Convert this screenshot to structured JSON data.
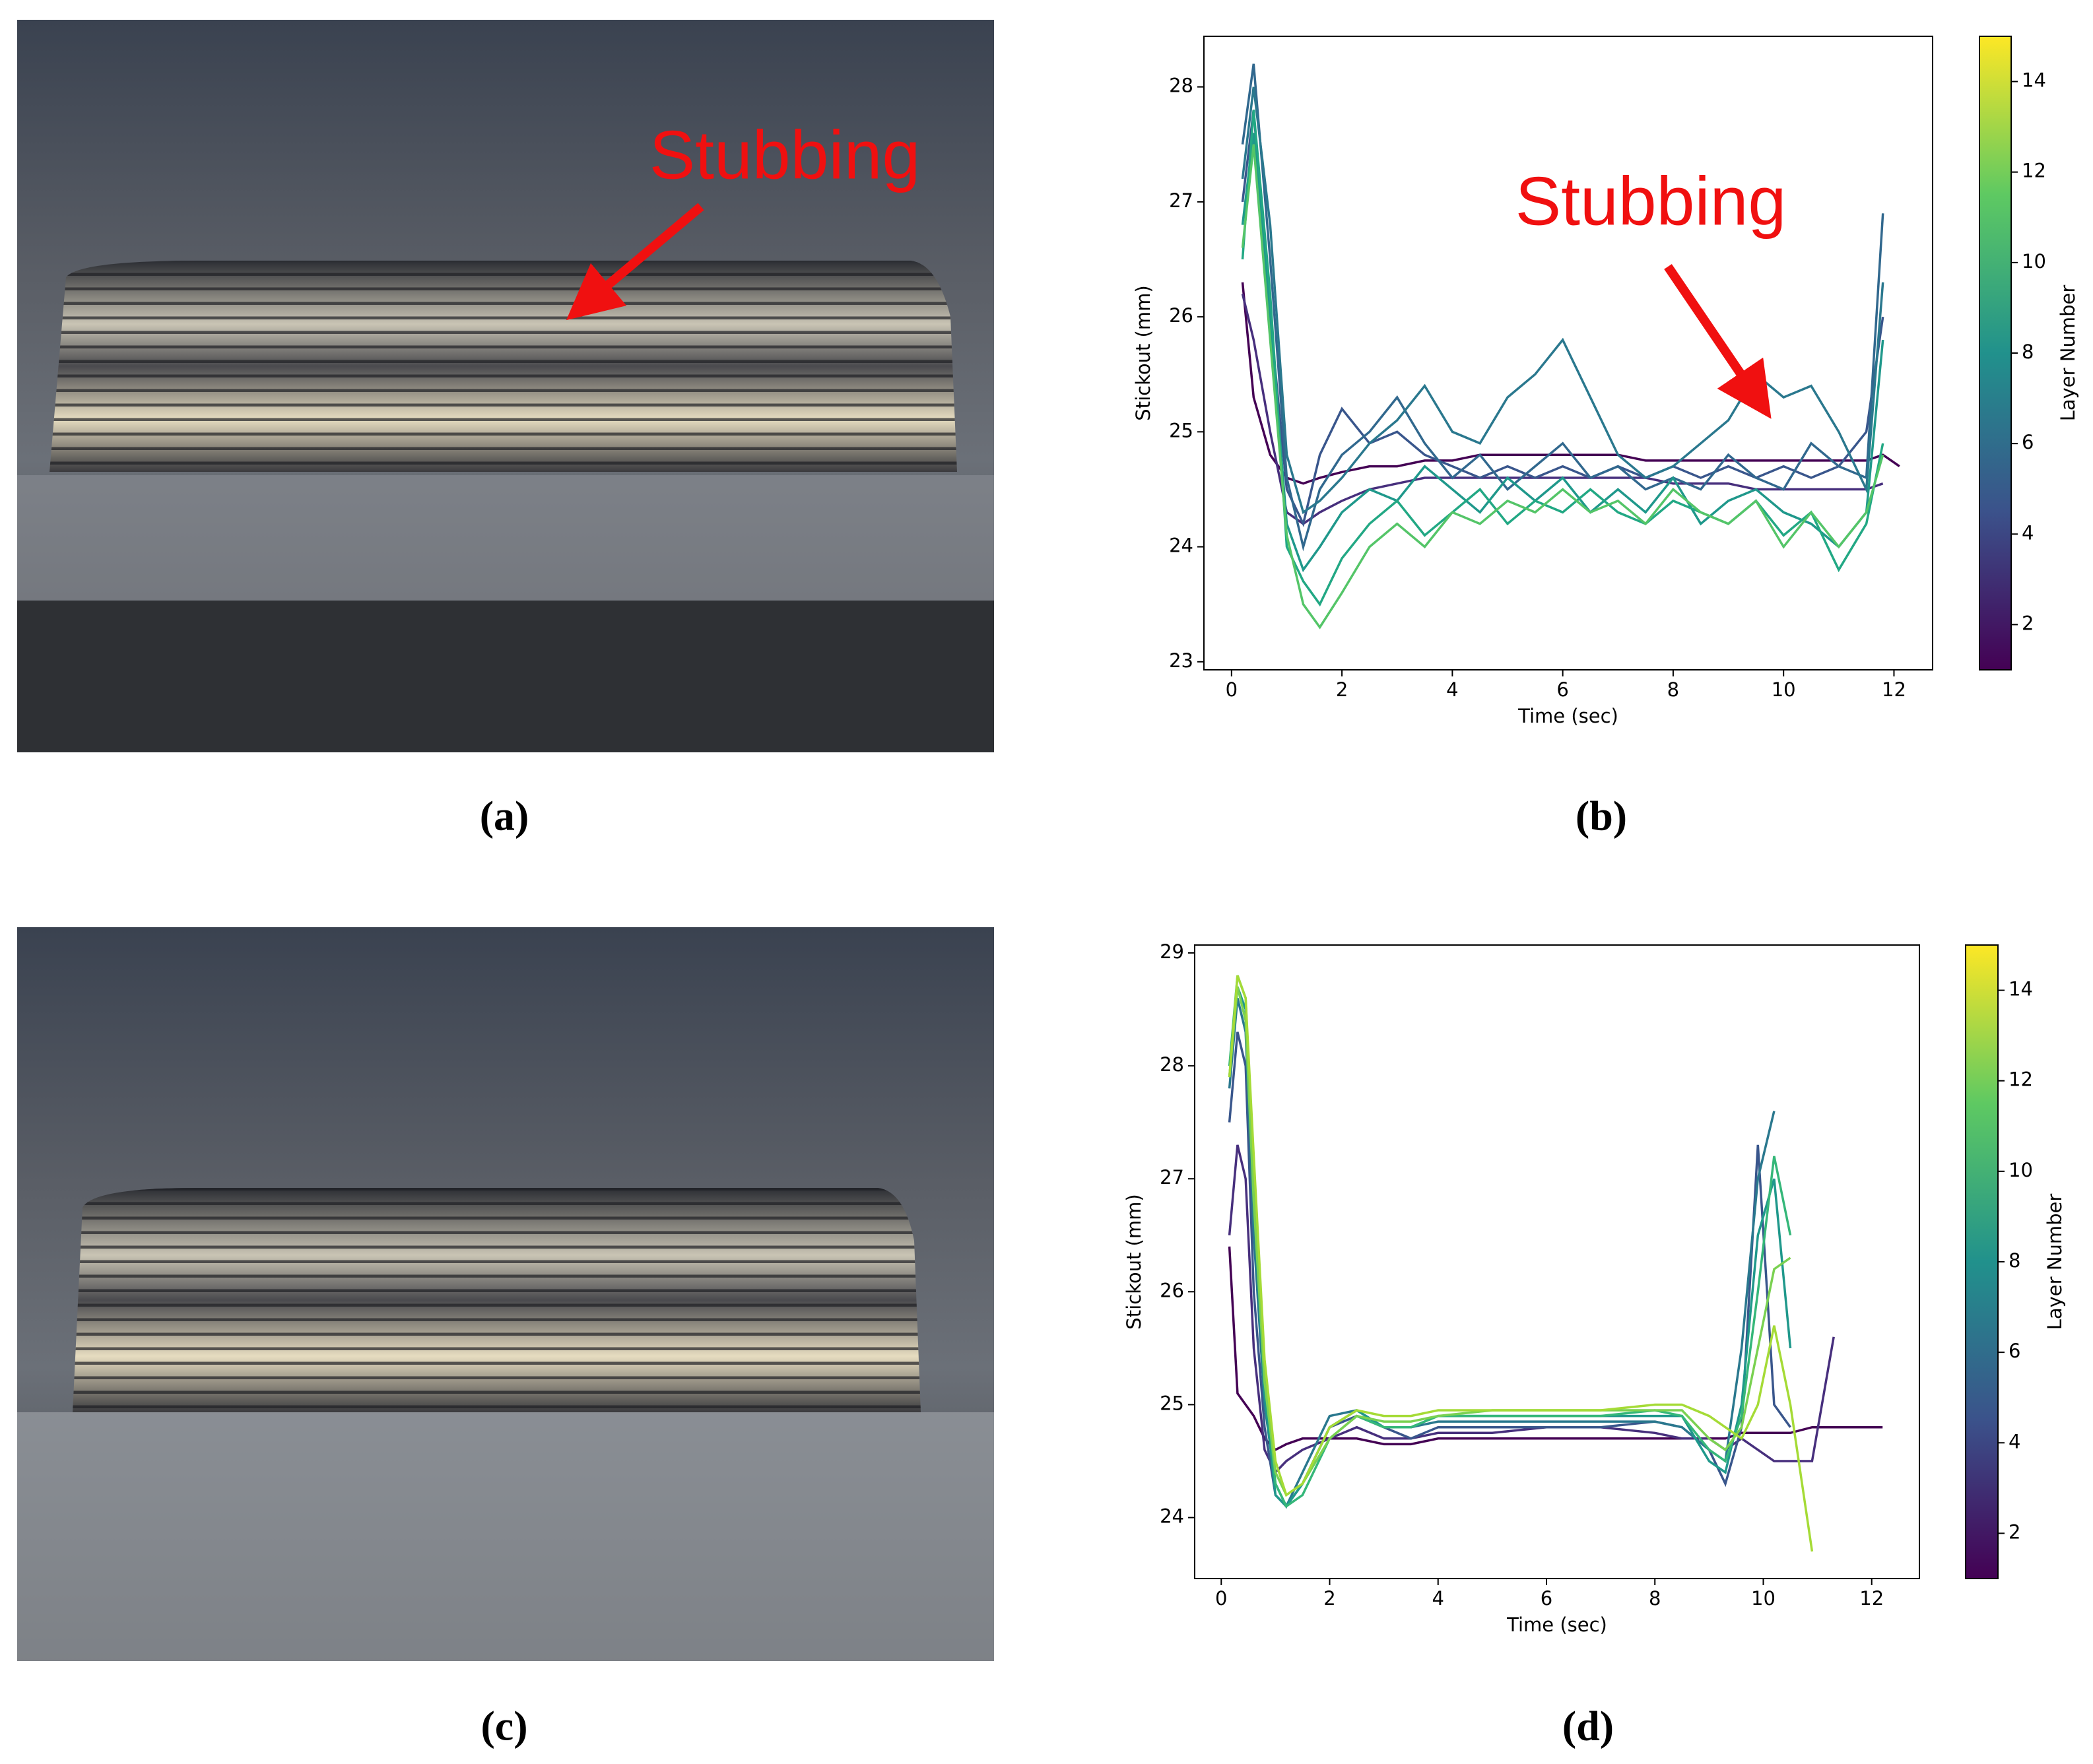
{
  "photos": [
    {
      "label": "(a)",
      "annotation": "Stubbing"
    },
    {
      "label": "(c)"
    }
  ],
  "chart_data": [
    {
      "type": "line",
      "panel_label": "(b)",
      "annotation": "Stubbing",
      "xlabel": "Time (sec)",
      "ylabel": "Stickout (mm)",
      "xlim": [
        -0.5,
        12.7
      ],
      "ylim": [
        22.93,
        28.44
      ],
      "xticks": [
        0,
        2,
        4,
        6,
        8,
        10,
        12
      ],
      "yticks": [
        23,
        24,
        25,
        26,
        27,
        28
      ],
      "colorbar": {
        "label": "Layer Number",
        "lim": [
          1,
          15
        ],
        "ticks": [
          2,
          4,
          6,
          8,
          10,
          12,
          14
        ]
      },
      "x": [
        0.2,
        0.4,
        0.7,
        1.0,
        1.3,
        1.6,
        2,
        2.5,
        3,
        3.5,
        4,
        4.5,
        5,
        5.5,
        6,
        6.5,
        7,
        7.5,
        8,
        8.5,
        9,
        9.5,
        10,
        10.5,
        11,
        11.5,
        11.8,
        12.1
      ],
      "series": [
        {
          "color": "#440154",
          "values": [
            26.3,
            25.3,
            24.8,
            24.6,
            24.55,
            24.6,
            24.65,
            24.7,
            24.7,
            24.75,
            24.75,
            24.8,
            24.8,
            24.8,
            24.8,
            24.8,
            24.8,
            24.75,
            24.75,
            24.75,
            24.75,
            24.75,
            24.75,
            24.75,
            24.75,
            24.75,
            24.8,
            24.7
          ]
        },
        {
          "color": "#472f7d",
          "values": [
            26.2,
            25.8,
            25.0,
            24.3,
            24.2,
            24.3,
            24.4,
            24.5,
            24.55,
            24.6,
            24.6,
            24.6,
            24.6,
            24.6,
            24.6,
            24.6,
            24.6,
            24.6,
            24.55,
            24.55,
            24.55,
            24.5,
            24.5,
            24.5,
            24.5,
            24.5,
            24.55,
            null
          ]
        },
        {
          "color": "#39568c",
          "values": [
            27.0,
            27.8,
            26.0,
            24.5,
            24.2,
            24.8,
            25.2,
            24.9,
            25.0,
            24.8,
            24.7,
            24.6,
            24.7,
            24.6,
            24.7,
            24.6,
            24.7,
            24.6,
            24.7,
            24.6,
            24.7,
            24.6,
            24.7,
            24.6,
            24.7,
            25.0,
            26.0,
            null
          ]
        },
        {
          "color": "#31688e",
          "values": [
            27.5,
            28.2,
            26.5,
            24.6,
            24.0,
            24.5,
            24.8,
            25.0,
            25.3,
            24.9,
            24.6,
            24.8,
            24.5,
            24.7,
            24.9,
            24.6,
            24.7,
            24.5,
            24.6,
            24.5,
            24.8,
            24.6,
            24.5,
            24.9,
            24.7,
            24.6,
            26.9,
            null
          ]
        },
        {
          "color": "#2a788e",
          "values": [
            27.2,
            28.0,
            26.8,
            24.8,
            24.3,
            24.4,
            24.6,
            24.9,
            25.1,
            25.4,
            25.0,
            24.9,
            25.3,
            25.5,
            25.8,
            25.3,
            24.8,
            24.6,
            24.7,
            24.9,
            25.1,
            25.5,
            25.3,
            25.4,
            25.0,
            24.5,
            26.3,
            null
          ]
        },
        {
          "color": "#1f988b",
          "values": [
            26.8,
            27.6,
            26.0,
            24.2,
            23.8,
            24.0,
            24.3,
            24.5,
            24.4,
            24.7,
            24.5,
            24.3,
            24.6,
            24.4,
            24.6,
            24.3,
            24.5,
            24.3,
            24.6,
            24.2,
            24.4,
            24.5,
            24.3,
            24.2,
            24.0,
            24.3,
            25.8,
            null
          ]
        },
        {
          "color": "#22a884",
          "values": [
            26.5,
            27.8,
            26.2,
            24.0,
            23.7,
            23.5,
            23.9,
            24.2,
            24.4,
            24.1,
            24.3,
            24.5,
            24.2,
            24.4,
            24.3,
            24.5,
            24.3,
            24.2,
            24.4,
            24.3,
            24.2,
            24.4,
            24.1,
            24.3,
            23.8,
            24.2,
            24.9,
            null
          ]
        },
        {
          "color": "#54c568",
          "values": [
            26.6,
            27.5,
            25.8,
            24.1,
            23.5,
            23.3,
            23.6,
            24.0,
            24.2,
            24.0,
            24.3,
            24.2,
            24.4,
            24.3,
            24.5,
            24.3,
            24.4,
            24.2,
            24.5,
            24.3,
            24.2,
            24.4,
            24.0,
            24.3,
            24.0,
            24.3,
            24.8,
            null
          ]
        }
      ]
    },
    {
      "type": "line",
      "panel_label": "(d)",
      "xlabel": "Time (sec)",
      "ylabel": "Stickout (mm)",
      "xlim": [
        -0.49,
        12.88
      ],
      "ylim": [
        23.46,
        29.07
      ],
      "xticks": [
        0,
        2,
        4,
        6,
        8,
        10,
        12
      ],
      "yticks": [
        24,
        25,
        26,
        27,
        28,
        29
      ],
      "colorbar": {
        "label": "Layer Number",
        "lim": [
          1,
          15
        ],
        "ticks": [
          2,
          4,
          6,
          8,
          10,
          12,
          14
        ]
      },
      "x": [
        0.15,
        0.3,
        0.45,
        0.6,
        0.8,
        1.0,
        1.2,
        1.5,
        2,
        2.5,
        3,
        3.5,
        4,
        5,
        6,
        7,
        8,
        8.5,
        9,
        9.3,
        9.6,
        9.9,
        10.2,
        10.5,
        10.9,
        11.3,
        11.8,
        12.2
      ],
      "series": [
        {
          "color": "#440154",
          "values": [
            26.4,
            25.1,
            25.0,
            24.9,
            24.7,
            24.6,
            24.65,
            24.7,
            24.7,
            24.7,
            24.65,
            24.65,
            24.7,
            24.7,
            24.7,
            24.7,
            24.7,
            24.7,
            24.7,
            24.7,
            24.75,
            24.75,
            24.75,
            24.75,
            24.8,
            24.8,
            24.8,
            24.8
          ]
        },
        {
          "color": "#472f7d",
          "values": [
            26.5,
            27.3,
            27.0,
            25.5,
            24.6,
            24.4,
            24.5,
            24.6,
            24.7,
            24.8,
            24.7,
            24.7,
            24.75,
            24.75,
            24.8,
            24.8,
            24.75,
            24.7,
            24.7,
            24.6,
            24.7,
            24.6,
            24.5,
            24.5,
            24.5,
            25.6,
            null,
            null
          ]
        },
        {
          "color": "#39568c",
          "values": [
            27.5,
            28.3,
            28.0,
            26.0,
            24.8,
            24.2,
            24.1,
            24.3,
            24.8,
            24.9,
            24.8,
            24.7,
            24.8,
            24.8,
            24.8,
            24.8,
            24.85,
            24.8,
            24.6,
            24.3,
            24.8,
            27.3,
            25.0,
            24.8,
            null,
            null,
            null,
            null
          ]
        },
        {
          "color": "#2a788e",
          "values": [
            27.8,
            28.6,
            28.3,
            26.5,
            25.0,
            24.3,
            24.1,
            24.4,
            24.9,
            24.95,
            24.8,
            24.8,
            24.85,
            24.85,
            24.85,
            24.85,
            24.85,
            24.8,
            24.6,
            24.5,
            25.5,
            27.0,
            27.6,
            null,
            null,
            null,
            null,
            null
          ]
        },
        {
          "color": "#1f988b",
          "values": [
            27.9,
            28.7,
            28.5,
            26.8,
            25.1,
            24.2,
            24.1,
            24.3,
            24.8,
            24.95,
            24.8,
            24.8,
            24.9,
            24.9,
            24.9,
            24.9,
            24.9,
            24.9,
            24.5,
            24.4,
            25.0,
            26.5,
            27.0,
            25.5,
            null,
            null,
            null,
            null
          ]
        },
        {
          "color": "#35b779",
          "values": [
            28.0,
            28.8,
            28.6,
            27.0,
            25.3,
            24.3,
            24.1,
            24.2,
            24.7,
            24.9,
            24.8,
            24.8,
            24.9,
            24.9,
            24.9,
            24.9,
            24.95,
            24.9,
            24.6,
            24.5,
            24.9,
            26.0,
            27.2,
            26.5,
            null,
            null,
            null,
            null
          ]
        },
        {
          "color": "#7ad151",
          "values": [
            27.9,
            28.7,
            28.4,
            26.8,
            25.2,
            24.4,
            24.2,
            24.3,
            24.7,
            24.9,
            24.85,
            24.85,
            24.9,
            24.95,
            24.95,
            24.95,
            24.95,
            24.95,
            24.7,
            24.6,
            24.8,
            25.5,
            26.2,
            26.3,
            null,
            null,
            null,
            null
          ]
        },
        {
          "color": "#a5db36",
          "values": [
            27.9,
            28.8,
            28.6,
            27.2,
            25.4,
            24.5,
            24.2,
            24.3,
            24.8,
            24.95,
            24.9,
            24.9,
            24.95,
            24.95,
            24.95,
            24.95,
            25.0,
            25.0,
            24.9,
            24.8,
            24.7,
            25.0,
            25.7,
            25.0,
            23.7,
            null,
            null,
            null
          ]
        }
      ]
    }
  ]
}
